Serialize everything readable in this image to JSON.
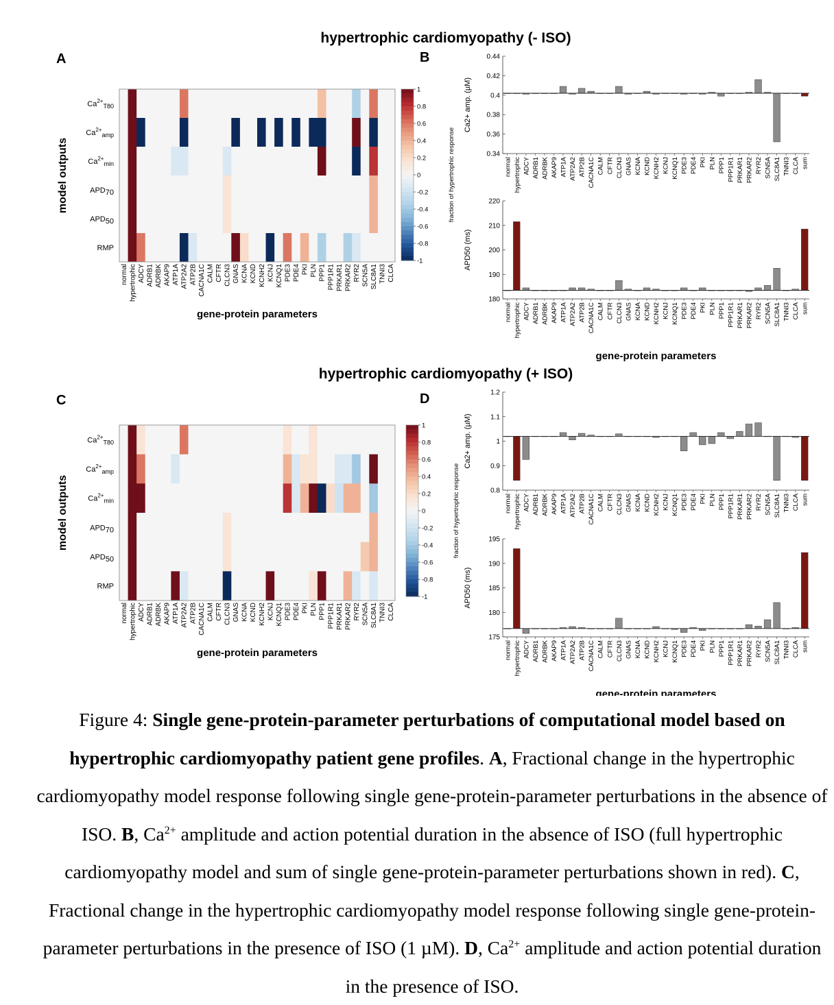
{
  "colors": {
    "neg_dark": "#0b2a5a",
    "pos_dark": "#6e0f1a",
    "neutral": "#f5f5f5",
    "bar_gray": "#8c8c8c",
    "bar_red": "#7a1712"
  },
  "params": [
    "normal",
    "hypertrophic",
    "ADCY",
    "ADRB1",
    "ADRBK",
    "AKAP9",
    "ATP1A",
    "ATP2A2",
    "ATP2B",
    "CACNA1C",
    "CALM",
    "CFTR",
    "CLCN3",
    "GNAS",
    "KCNA",
    "KCND",
    "KCNH2",
    "KCNJ",
    "KCNQ1",
    "PDE3",
    "PDE4",
    "PKI",
    "PLN",
    "PPP1",
    "PPP1R1",
    "PRKAR1",
    "PRKAR2",
    "RYR2",
    "SCN5A",
    "SLC8A1",
    "TNNI3",
    "CLCA"
  ],
  "param_sum_label": "sum",
  "section_titles": {
    "top": "hypertrophic cardiomyopathy (- ISO)",
    "bottom": "hypertrophic cardiomyopathy (+ ISO)"
  },
  "panel_letters": {
    "A": "A",
    "B": "B",
    "C": "C",
    "D": "D"
  },
  "heatmap": {
    "ylabel": "model outputs",
    "xlabel": "gene-protein parameters",
    "rows": [
      {
        "base": "Ca",
        "sup": "2+",
        "sub": "T80"
      },
      {
        "base": "Ca",
        "sup": "2+",
        "sub": "amp"
      },
      {
        "base": "Ca",
        "sup": "2+",
        "sub": "min"
      },
      {
        "base": "APD",
        "sup": "",
        "sub": "70"
      },
      {
        "base": "APD",
        "sup": "",
        "sub": "50"
      },
      {
        "base": "RMP",
        "sup": "",
        "sub": ""
      }
    ],
    "colorbar_label": "fraction of hypertrophic response",
    "colorbar_ticks": [
      "1",
      "0.8",
      "0.6",
      "0.4",
      "0.2",
      "0",
      "-0.2",
      "-0.4",
      "-0.6",
      "-0.8",
      "-1"
    ]
  },
  "chart_data": [
    {
      "type": "heatmap",
      "panel": "A",
      "rows": [
        "Ca2+T80",
        "Ca2+amp",
        "Ca2+min",
        "APD70",
        "APD50",
        "RMP"
      ],
      "columns": [
        "normal",
        "hypertrophic",
        "ADCY",
        "ADRB1",
        "ADRBK",
        "AKAP9",
        "ATP1A",
        "ATP2A2",
        "ATP2B",
        "CACNA1C",
        "CALM",
        "CFTR",
        "CLCN3",
        "GNAS",
        "KCNA",
        "KCND",
        "KCNH2",
        "KCNJ",
        "KCNQ1",
        "PDE3",
        "PDE4",
        "PKI",
        "PLN",
        "PPP1",
        "PPP1R1",
        "PRKAR1",
        "PRKAR2",
        "RYR2",
        "SCN5A",
        "SLC8A1",
        "TNNI3",
        "CLCA"
      ],
      "zlim": [
        -1,
        1
      ],
      "values": [
        [
          0,
          1,
          0,
          0,
          0,
          0,
          0,
          0.6,
          0,
          0,
          0,
          0,
          0,
          0,
          0,
          0,
          0,
          0,
          0,
          0,
          0,
          0,
          0,
          0.35,
          0,
          0,
          0,
          -0.35,
          0,
          0.6,
          0,
          0
        ],
        [
          0,
          1,
          -1,
          0,
          0,
          0,
          0,
          -1,
          0,
          0,
          0,
          0,
          0,
          -1,
          0,
          0,
          -1,
          0,
          -1,
          0,
          -1,
          0,
          -1,
          -1,
          0,
          0,
          0,
          1,
          0,
          -1,
          0,
          0
        ],
        [
          0,
          1,
          0,
          0,
          0,
          0,
          -0.15,
          -0.15,
          0,
          0,
          0,
          0,
          -0.15,
          0,
          0,
          0,
          0,
          0,
          0,
          0,
          0,
          0,
          0,
          1,
          0,
          0,
          0,
          -1,
          0,
          0.8,
          0,
          0
        ],
        [
          0,
          1,
          0,
          0,
          0,
          0,
          0,
          0,
          0,
          0,
          0,
          0,
          0.15,
          0,
          0,
          0,
          0,
          0,
          0,
          0,
          0,
          0,
          0,
          0,
          0,
          0,
          0,
          0,
          0,
          0.4,
          0,
          0
        ],
        [
          0,
          1,
          0,
          0,
          0,
          0,
          0,
          0,
          0,
          0,
          0,
          0,
          0.15,
          0,
          0,
          0,
          0,
          0,
          0,
          0,
          0,
          0,
          0,
          0,
          0,
          0,
          0,
          0,
          0,
          0.4,
          0,
          0
        ],
        [
          0,
          1,
          0.6,
          0,
          0,
          0,
          0,
          -1,
          -0.15,
          0,
          0,
          0,
          0,
          1,
          0.2,
          0,
          0,
          -1,
          0,
          0.6,
          0,
          0.4,
          0,
          -0.35,
          0,
          0,
          -0.35,
          -0.15,
          0,
          0,
          0,
          0
        ]
      ]
    },
    {
      "type": "bar",
      "panel": "B-top",
      "categories": [
        "normal",
        "hypertrophic",
        "ADCY",
        "ADRB1",
        "ADRBK",
        "AKAP9",
        "ATP1A",
        "ATP2A2",
        "ATP2B",
        "CACNA1C",
        "CALM",
        "CFTR",
        "CLCN3",
        "GNAS",
        "KCNA",
        "KCND",
        "KCNH2",
        "KCNJ",
        "KCNQ1",
        "PDE3",
        "PDE4",
        "PKI",
        "PLN",
        "PPP1",
        "PPP1R1",
        "PRKAR1",
        "PRKAR2",
        "RYR2",
        "SCN5A",
        "SLC8A1",
        "TNNI3",
        "CLCA",
        "sum"
      ],
      "values": [
        0.402,
        0.402,
        0.401,
        0.402,
        0.402,
        0.402,
        0.409,
        0.401,
        0.407,
        0.404,
        0.402,
        0.402,
        0.409,
        0.401,
        0.402,
        0.404,
        0.401,
        0.402,
        0.402,
        0.401,
        0.402,
        0.401,
        0.403,
        0.399,
        0.402,
        0.402,
        0.403,
        0.416,
        0.403,
        0.352,
        0.402,
        0.402,
        0.399
      ],
      "baseline": 0.402,
      "red_categories": [
        "hypertrophic",
        "sum"
      ],
      "ylabel": "Ca2+ amp. (µM)",
      "ylim": [
        0.34,
        0.44
      ],
      "yticks": [
        0.34,
        0.36,
        0.38,
        0.4,
        0.42,
        0.44
      ]
    },
    {
      "type": "bar",
      "panel": "B-bottom",
      "categories": [
        "normal",
        "hypertrophic",
        "ADCY",
        "ADRB1",
        "ADRBK",
        "AKAP9",
        "ATP1A",
        "ATP2A2",
        "ATP2B",
        "CACNA1C",
        "CALM",
        "CFTR",
        "CLCN3",
        "GNAS",
        "KCNA",
        "KCND",
        "KCNH2",
        "KCNJ",
        "KCNQ1",
        "PDE3",
        "PDE4",
        "PKI",
        "PLN",
        "PPP1",
        "PPP1R1",
        "PRKAR1",
        "PRKAR2",
        "RYR2",
        "SCN5A",
        "SLC8A1",
        "TNNI3",
        "CLCA",
        "sum"
      ],
      "values": [
        183.5,
        211.5,
        184.5,
        183.5,
        183.5,
        183.5,
        183.5,
        184.5,
        184.5,
        184,
        183.5,
        183.5,
        187.5,
        184,
        183.5,
        184.5,
        184,
        183.5,
        183.5,
        184.5,
        183.5,
        184.5,
        183.5,
        183.5,
        183.5,
        183.5,
        183,
        184.5,
        185.5,
        192.5,
        183.5,
        184,
        208.5
      ],
      "baseline": 183.5,
      "red_categories": [
        "hypertrophic",
        "sum"
      ],
      "ylabel": "APD50 (ms)",
      "xlabel": "gene-protein parameters",
      "ylim": [
        180,
        220
      ],
      "yticks": [
        180,
        190,
        200,
        210,
        220
      ]
    },
    {
      "type": "heatmap",
      "panel": "C",
      "rows": [
        "Ca2+T80",
        "Ca2+amp",
        "Ca2+min",
        "APD70",
        "APD50",
        "RMP"
      ],
      "columns": [
        "normal",
        "hypertrophic",
        "ADCY",
        "ADRB1",
        "ADRBK",
        "AKAP9",
        "ATP1A",
        "ATP2A2",
        "ATP2B",
        "CACNA1C",
        "CALM",
        "CFTR",
        "CLCN3",
        "GNAS",
        "KCNA",
        "KCND",
        "KCNH2",
        "KCNJ",
        "KCNQ1",
        "PDE3",
        "PDE4",
        "PKI",
        "PLN",
        "PPP1",
        "PPP1R1",
        "PRKAR1",
        "PRKAR2",
        "RYR2",
        "SCN5A",
        "SLC8A1",
        "TNNI3",
        "CLCA"
      ],
      "zlim": [
        -1,
        1
      ],
      "values": [
        [
          0,
          1,
          0.15,
          0,
          0,
          0,
          0,
          0.6,
          0,
          0,
          0,
          0,
          0,
          0,
          0,
          0,
          0,
          0,
          0,
          0.15,
          0,
          0,
          0.15,
          0,
          0,
          0,
          0,
          0,
          0,
          0,
          0,
          0
        ],
        [
          0,
          1,
          0.6,
          0,
          0,
          0,
          -0.15,
          0,
          0,
          0,
          0,
          0,
          0,
          0,
          0,
          0,
          0,
          0,
          0,
          0.4,
          -0.15,
          0.15,
          0.15,
          0,
          0,
          -0.15,
          -0.15,
          -0.4,
          0,
          1,
          0,
          0
        ],
        [
          0,
          1,
          1,
          0,
          0,
          0,
          0,
          0,
          0,
          0,
          0,
          0,
          0,
          0,
          0,
          0,
          0,
          0,
          0,
          0.8,
          -0.15,
          0.4,
          1,
          -1,
          0.2,
          -0.2,
          0.4,
          0.4,
          0,
          -0.4,
          0,
          0
        ],
        [
          0,
          1,
          0,
          0,
          0,
          0,
          0,
          0,
          0,
          0,
          0,
          0,
          0.15,
          0,
          0,
          0,
          0,
          0,
          0,
          0,
          0,
          0,
          0,
          0,
          0,
          0,
          0,
          0,
          0,
          0.4,
          0,
          0
        ],
        [
          0,
          1,
          0,
          0,
          0,
          0,
          0,
          0,
          0,
          0,
          0,
          0,
          0.15,
          0,
          0,
          0,
          0,
          0,
          0,
          0,
          0,
          0,
          0,
          0,
          0,
          0,
          0,
          0,
          0.3,
          0.4,
          0,
          0
        ],
        [
          0,
          1,
          0,
          0,
          0,
          0,
          1,
          -0.15,
          0,
          0,
          0,
          0,
          -1,
          0,
          0,
          0,
          0,
          1,
          0,
          0,
          0,
          0,
          0.15,
          1,
          0,
          0,
          0.4,
          -0.15,
          0,
          -0.15,
          0,
          0
        ]
      ]
    },
    {
      "type": "bar",
      "panel": "D-top",
      "categories": [
        "normal",
        "hypertrophic",
        "ADCY",
        "ADRB1",
        "ADRBK",
        "AKAP9",
        "ATP1A",
        "ATP2A2",
        "ATP2B",
        "CACNA1C",
        "CALM",
        "CFTR",
        "CLCN3",
        "GNAS",
        "KCNA",
        "KCND",
        "KCNH2",
        "KCNJ",
        "KCNQ1",
        "PDE3",
        "PDE4",
        "PKI",
        "PLN",
        "PPP1",
        "PPP1R1",
        "PRKAR1",
        "PRKAR2",
        "RYR2",
        "SCN5A",
        "SLC8A1",
        "TNNI3",
        "CLCA",
        "sum"
      ],
      "values": [
        1.02,
        0.84,
        0.925,
        1.02,
        1.02,
        1.02,
        1.035,
        1.005,
        1.032,
        1.025,
        1.02,
        1.02,
        1.03,
        1.02,
        1.02,
        1.02,
        1.015,
        1.02,
        1.02,
        0.96,
        1.035,
        0.985,
        0.99,
        1.035,
        1.01,
        1.04,
        1.07,
        1.075,
        1.02,
        0.84,
        1.02,
        1.015,
        0.84
      ],
      "baseline": 1.02,
      "red_categories": [
        "hypertrophic",
        "sum"
      ],
      "ylabel": "Ca2+ amp. (µM)",
      "ylim": [
        0.8,
        1.2
      ],
      "yticks": [
        0.8,
        0.9,
        1,
        1.1,
        1.2
      ]
    },
    {
      "type": "bar",
      "panel": "D-bottom",
      "categories": [
        "normal",
        "hypertrophic",
        "ADCY",
        "ADRB1",
        "ADRBK",
        "AKAP9",
        "ATP1A",
        "ATP2A2",
        "ATP2B",
        "CACNA1C",
        "CALM",
        "CFTR",
        "CLCN3",
        "GNAS",
        "KCNA",
        "KCND",
        "KCNH2",
        "KCNJ",
        "KCNQ1",
        "PDE3",
        "PDE4",
        "PKI",
        "PLN",
        "PPP1",
        "PPP1R1",
        "PRKAR1",
        "PRKAR2",
        "RYR2",
        "SCN5A",
        "SLC8A1",
        "TNNI3",
        "CLCA",
        "sum"
      ],
      "values": [
        176.7,
        193,
        175.7,
        176.7,
        176.7,
        176.7,
        176.9,
        177.1,
        176.9,
        176.7,
        176.7,
        176.7,
        178.8,
        176.7,
        176.7,
        176.7,
        177.1,
        176.7,
        176.5,
        175.9,
        176.9,
        176.3,
        176.7,
        176.7,
        176.7,
        176.7,
        177.5,
        177.2,
        178.5,
        182,
        176.7,
        176.9,
        192.2
      ],
      "baseline": 176.7,
      "red_categories": [
        "hypertrophic",
        "sum"
      ],
      "ylabel": "APD50 (ms)",
      "xlabel": "gene-protein parameters",
      "ylim": [
        175,
        195
      ],
      "yticks": [
        175,
        180,
        185,
        190,
        195
      ]
    }
  ],
  "caption": {
    "fig_label": "Figure  4:",
    "title": "Single gene-protein-parameter perturbations of computational model based on hypertrophic cardiomyopathy patient gene profiles",
    "a_label": "A",
    "a_text": "Fractional change in the hypertrophic cardiomyopathy model response following single gene-protein-parameter perturbations in the absence of ISO.",
    "b_label": "B",
    "b_text_1": "Ca",
    "b_sup": "2+",
    "b_text_2": "amplitude and action potential duration in the absence of ISO (full hypertrophic cardiomyopathy model and sum of single gene-protein-parameter perturbations shown in red).",
    "c_label": "C",
    "c_text": "Fractional change in the hypertrophic cardiomyopathy model response following single gene-protein-parameter perturbations in the presence of ISO (1 µM).",
    "d_label": "D",
    "d_text_1": "Ca",
    "d_sup": "2+",
    "d_text_2": "amplitude and action potential duration in the presence of ISO."
  }
}
